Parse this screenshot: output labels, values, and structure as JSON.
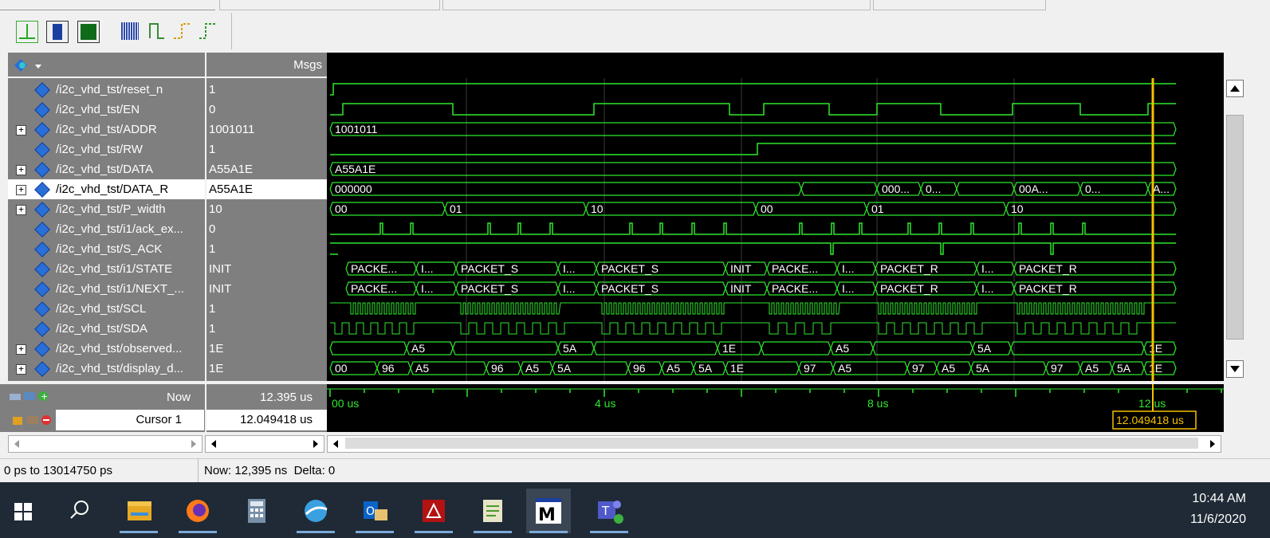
{
  "wave": {
    "msgs_header": "Msgs",
    "signals": [
      {
        "name": "/i2c_vhd_tst/reset_n",
        "value": "1",
        "expandable": false
      },
      {
        "name": "/i2c_vhd_tst/EN",
        "value": "0",
        "expandable": false
      },
      {
        "name": "/i2c_vhd_tst/ADDR",
        "value": "1001011",
        "expandable": true
      },
      {
        "name": "/i2c_vhd_tst/RW",
        "value": "1",
        "expandable": false
      },
      {
        "name": "/i2c_vhd_tst/DATA",
        "value": "A55A1E",
        "expandable": true
      },
      {
        "name": "/i2c_vhd_tst/DATA_R",
        "value": "A55A1E",
        "expandable": true,
        "selected": true
      },
      {
        "name": "/i2c_vhd_tst/P_width",
        "value": "10",
        "expandable": true
      },
      {
        "name": "/i2c_vhd_tst/i1/ack_ex...",
        "value": "0",
        "expandable": false
      },
      {
        "name": "/i2c_vhd_tst/S_ACK",
        "value": "1",
        "expandable": false
      },
      {
        "name": "/i2c_vhd_tst/i1/STATE",
        "value": "INIT",
        "expandable": false
      },
      {
        "name": "/i2c_vhd_tst/i1/NEXT_...",
        "value": "INIT",
        "expandable": false
      },
      {
        "name": "/i2c_vhd_tst/SCL",
        "value": "1",
        "expandable": false
      },
      {
        "name": "/i2c_vhd_tst/SDA",
        "value": "1",
        "expandable": false
      },
      {
        "name": "/i2c_vhd_tst/observed...",
        "value": "1E",
        "expandable": true
      },
      {
        "name": "/i2c_vhd_tst/display_d...",
        "value": "1E",
        "expandable": true
      }
    ],
    "bus_labels": {
      "addr": "1001011",
      "data": "A55A1E",
      "data_r": [
        "000000",
        "000...",
        "0...",
        "00A...",
        "0...",
        "A..."
      ],
      "p_width": [
        "00",
        "01",
        "10",
        "00",
        "01",
        "10"
      ],
      "state": [
        "PACKE...",
        "I...",
        "PACKET_S",
        "I...",
        "PACKET_S",
        "INIT",
        "PACKE...",
        "I...",
        "PACKET_R",
        "I...",
        "PACKET_R"
      ],
      "next_state": [
        "PACKE...",
        "I...",
        "PACKET_S",
        "I...",
        "PACKET_S",
        "INIT",
        "PACKE...",
        "I...",
        "PACKET_R",
        "I...",
        "PACKET_R"
      ],
      "observed": [
        "A5",
        "5A",
        "1E",
        "A5",
        "5A",
        "1E"
      ],
      "display": [
        "00",
        "96",
        "A5",
        "96",
        "A5",
        "5A",
        "96",
        "A5",
        "5A",
        "1E",
        "97",
        "A5",
        "97",
        "A5",
        "5A",
        "97",
        "A5",
        "5A",
        "1E"
      ]
    }
  },
  "now": {
    "label": "Now",
    "value": "12.395 us"
  },
  "cursor": {
    "label": "Cursor 1",
    "value": "12.049418 us",
    "marker": "12.049418 us"
  },
  "timeline": {
    "ticks": [
      "00 us",
      "4 us",
      "8 us",
      "12 us"
    ]
  },
  "status": {
    "range": "0 ps to 13014750 ps",
    "now_delta": "Now: 12,395 ns  Delta: 0"
  },
  "clock": {
    "time": "10:44 AM",
    "date": "11/6/2020"
  },
  "colors": {
    "wave": "#2ee82e",
    "cursor": "#f5c000",
    "background": "#000000",
    "panel": "#7f7f7f"
  }
}
